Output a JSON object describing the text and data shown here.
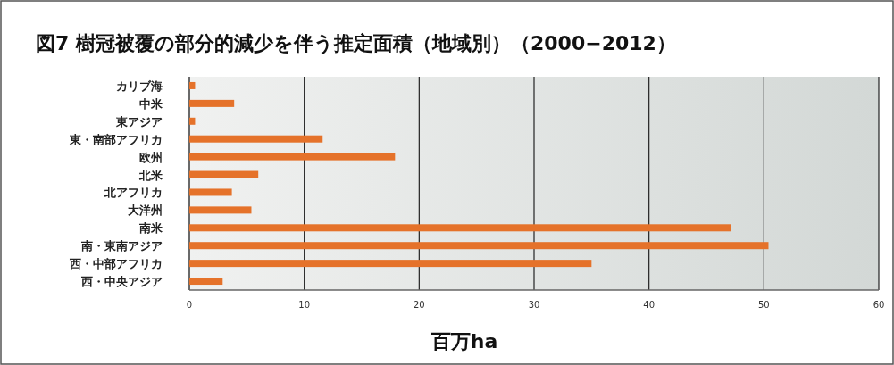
{
  "chart_data": {
    "type": "bar",
    "orientation": "horizontal",
    "title": "図7  樹冠被覆の部分的減少を伴う推定面積（地域別）（2000−2012）",
    "xlabel": "百万ha",
    "categories": [
      "カリブ海",
      "中米",
      "東アジア",
      "東・南部アフリカ",
      "欧州",
      "北米",
      "北アフリカ",
      "大洋州",
      "南米",
      "南・東南アジア",
      "西・中部アフリカ",
      "西・中央アジア"
    ],
    "values": [
      0.5,
      3.9,
      0.5,
      11.6,
      17.9,
      6.0,
      3.7,
      5.4,
      47.1,
      50.4,
      35.0,
      2.9
    ],
    "color": "#e5722a",
    "xlim": [
      0,
      60
    ],
    "xticks": [
      0,
      10,
      20,
      30,
      40,
      50,
      60
    ],
    "grid": "x"
  }
}
